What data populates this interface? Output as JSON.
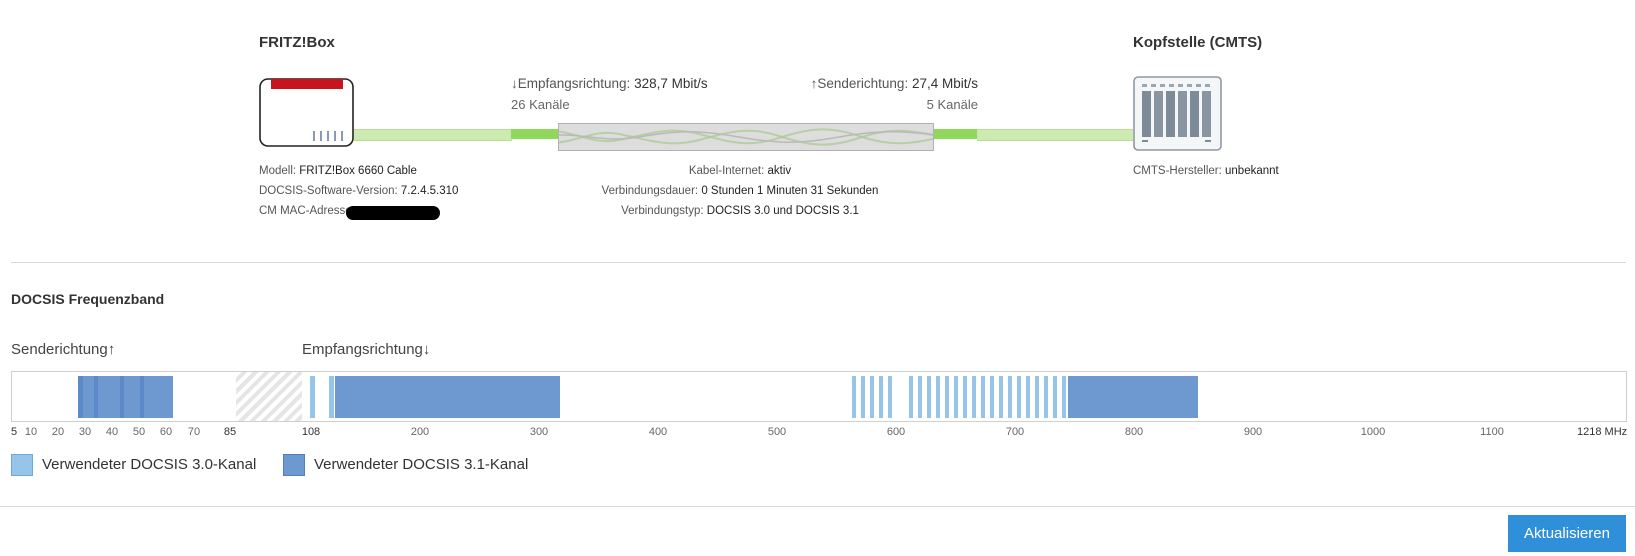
{
  "device": {
    "title": "FRITZ!Box",
    "model_label": "Modell:",
    "model_value": "FRITZ!Box 6660 Cable",
    "docsis_sw_label": "DOCSIS-Software-Version:",
    "docsis_sw_value": "7.2.4.5.310",
    "mac_label": "CM MAC-Adresse:"
  },
  "cmts": {
    "title": "Kopfstelle (CMTS)",
    "vendor_label": "CMTS-Hersteller:",
    "vendor_value": "unbekannt"
  },
  "downstream": {
    "label": "↓Empfangsrichtung:",
    "rate": "328,7 Mbit/s",
    "channels": "26 Kanäle"
  },
  "upstream": {
    "label": "↑Senderichtung:",
    "rate": "27,4 Mbit/s",
    "channels": "5 Kanäle"
  },
  "connection": {
    "cable_label": "Kabel-Internet:",
    "cable_value": "aktiv",
    "duration_label": "Verbindungsdauer:",
    "duration_value": "0 Stunden 1 Minuten 31 Sekunden",
    "type_label": "Verbindungstyp:",
    "type_value": "DOCSIS 3.0 und DOCSIS 3.1"
  },
  "band": {
    "title": "DOCSIS Frequenzband",
    "upstream_heading": "Senderichtung↑",
    "downstream_heading": "Empfangsrichtung↓",
    "upstream_ticks": [
      "5",
      "10",
      "20",
      "30",
      "40",
      "50",
      "60",
      "70",
      "85"
    ],
    "downstream_ticks": [
      "108",
      "200",
      "300",
      "400",
      "500",
      "600",
      "700",
      "800",
      "900",
      "1000",
      "1100",
      "1218 MHz"
    ]
  },
  "legend": {
    "docsis30": "Verwendeter DOCSIS 3.0-Kanal",
    "docsis31": "Verwendeter DOCSIS 3.1-Kanal"
  },
  "colors": {
    "docsis30": "#97c5ea",
    "docsis31": "#6d98d0",
    "cable": "#8fd85b",
    "button": "#2f8fd8",
    "router_top": "#c8141c"
  },
  "icons": {
    "router": "router-icon",
    "cmts": "cmts-rack-icon"
  },
  "actions": {
    "refresh": "Aktualisieren"
  }
}
